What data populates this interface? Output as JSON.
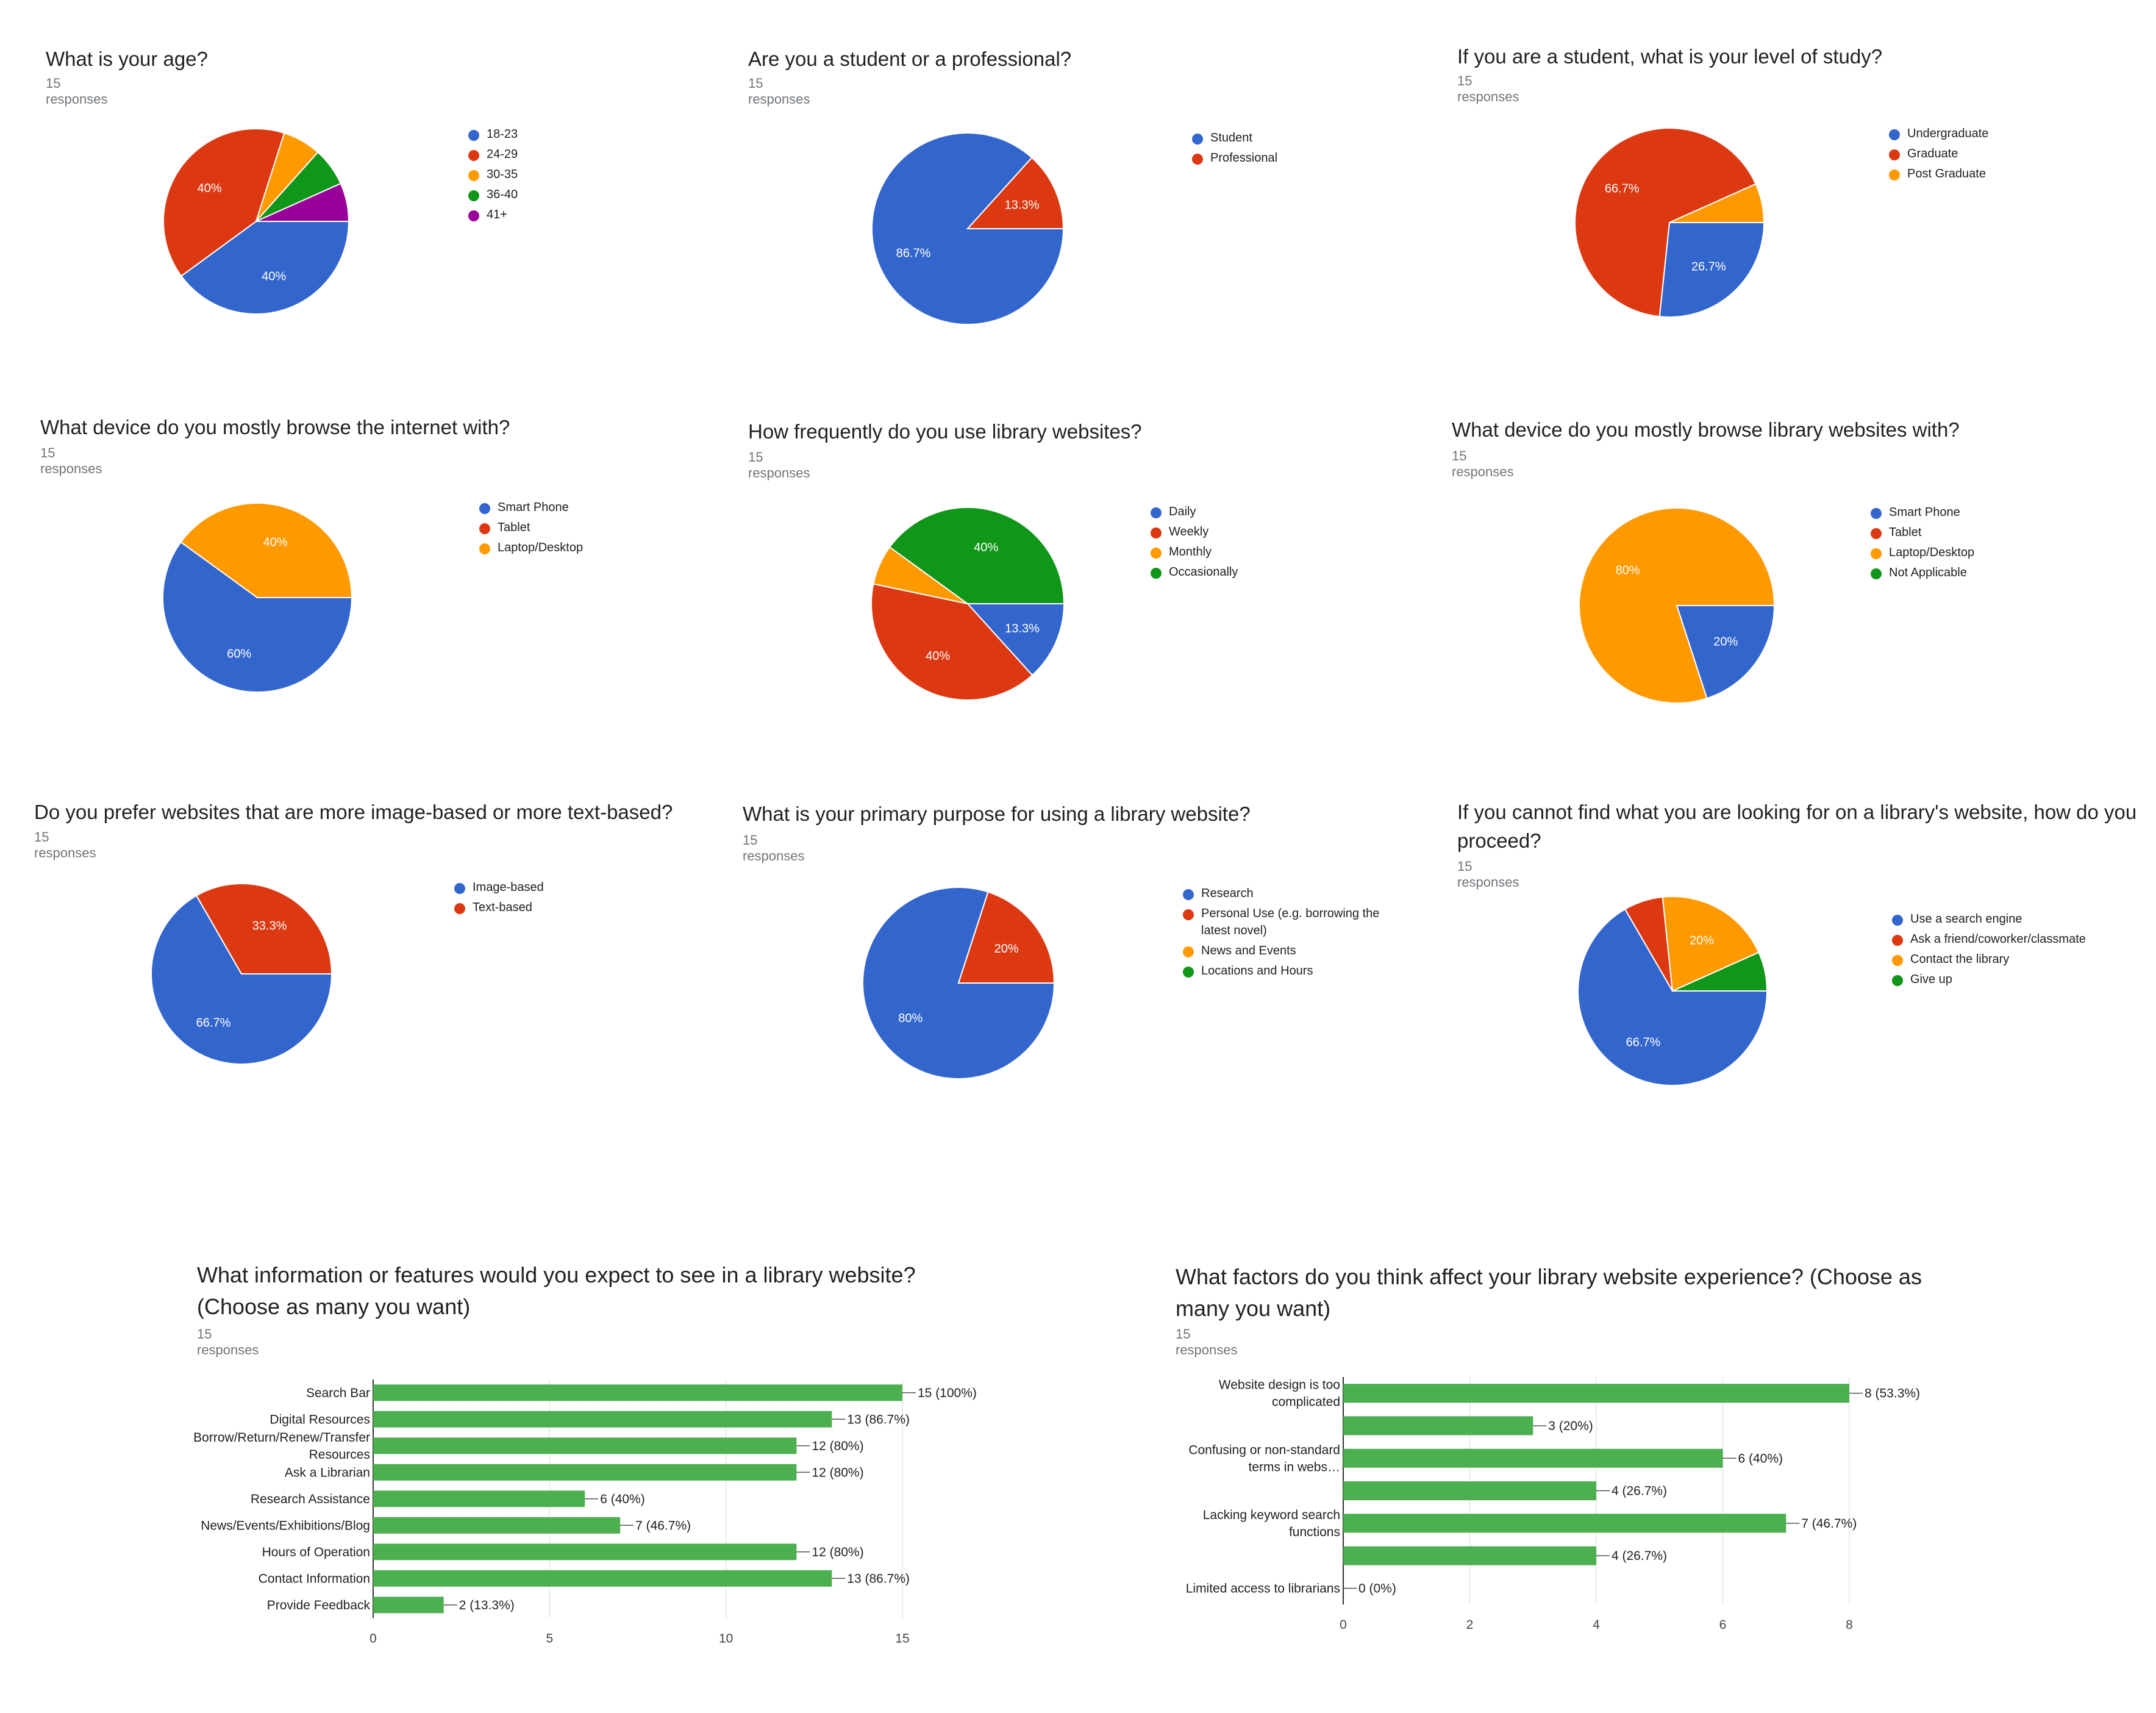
{
  "chart_data": [
    {
      "type": "pie",
      "title": "What is your age?",
      "subtitle": "15 responses",
      "categories": [
        "18-23",
        "24-29",
        "30-35",
        "36-40",
        "41+"
      ],
      "values": [
        40,
        40,
        6.7,
        6.7,
        6.7
      ],
      "labels": [
        "40%",
        "40%",
        "",
        "",
        ""
      ],
      "colors": [
        "#3366cc",
        "#dc3912",
        "#ff9900",
        "#109618",
        "#990099"
      ]
    },
    {
      "type": "pie",
      "title": "Are you a student or a professional?",
      "subtitle": "15 responses",
      "categories": [
        "Student",
        "Professional"
      ],
      "values": [
        86.7,
        13.3
      ],
      "labels": [
        "86.7%",
        "13.3%"
      ],
      "colors": [
        "#3366cc",
        "#dc3912"
      ]
    },
    {
      "type": "pie",
      "title": "If you are a student, what is your level of study?",
      "subtitle": "15 responses",
      "categories": [
        "Undergraduate",
        "Graduate",
        "Post Graduate"
      ],
      "values": [
        26.7,
        66.7,
        6.7
      ],
      "labels": [
        "26.7%",
        "66.7%",
        ""
      ],
      "colors": [
        "#3366cc",
        "#dc3912",
        "#ff9900"
      ]
    },
    {
      "type": "pie",
      "title": "What device do you mostly browse the internet with?",
      "subtitle": "15 responses",
      "categories": [
        "Smart Phone",
        "Tablet",
        "Laptop/Desktop"
      ],
      "values": [
        60,
        0,
        40
      ],
      "labels": [
        "60%",
        "",
        "40%"
      ],
      "colors": [
        "#3366cc",
        "#dc3912",
        "#ff9900"
      ]
    },
    {
      "type": "pie",
      "title": "How frequently do you use library websites?",
      "subtitle": "15 responses",
      "categories": [
        "Daily",
        "Weekly",
        "Monthly",
        "Occasionally"
      ],
      "values": [
        13.3,
        40,
        6.7,
        40
      ],
      "labels": [
        "13.3%",
        "40%",
        "",
        "40%"
      ],
      "colors": [
        "#3366cc",
        "#dc3912",
        "#ff9900",
        "#109618"
      ]
    },
    {
      "type": "pie",
      "title": "What device do you mostly browse library websites with?",
      "subtitle": "15 responses",
      "categories": [
        "Smart Phone",
        "Tablet",
        "Laptop/Desktop",
        "Not Applicable"
      ],
      "values": [
        20,
        0,
        80,
        0
      ],
      "labels": [
        "20%",
        "",
        "80%",
        ""
      ],
      "colors": [
        "#3366cc",
        "#dc3912",
        "#ff9900",
        "#109618"
      ]
    },
    {
      "type": "pie",
      "title": "Do you prefer websites that are more image-based or more text-based?",
      "subtitle": "15 responses",
      "categories": [
        "Image-based",
        "Text-based"
      ],
      "values": [
        66.7,
        33.3
      ],
      "labels": [
        "66.7%",
        "33.3%"
      ],
      "colors": [
        "#3366cc",
        "#dc3912"
      ]
    },
    {
      "type": "pie",
      "title": "What is your primary purpose for using a library website?",
      "subtitle": "15 responses",
      "categories": [
        "Research",
        "Personal Use (e.g. borrowing the latest novel)",
        "News and Events",
        "Locations and Hours"
      ],
      "values": [
        80,
        20,
        0,
        0
      ],
      "labels": [
        "80%",
        "20%",
        "",
        ""
      ],
      "colors": [
        "#3366cc",
        "#dc3912",
        "#ff9900",
        "#109618"
      ]
    },
    {
      "type": "pie",
      "title": "If you cannot find what you are looking for on a library's website, how do you proceed?",
      "subtitle": "15 responses",
      "categories": [
        "Use a search engine",
        "Ask a friend/coworker/classmate",
        "Contact the library",
        "Give up"
      ],
      "values": [
        66.7,
        6.7,
        20,
        6.7
      ],
      "labels": [
        "66.7%",
        "",
        "20%",
        ""
      ],
      "colors": [
        "#3366cc",
        "#dc3912",
        "#ff9900",
        "#109618"
      ]
    },
    {
      "type": "bar",
      "orientation": "horizontal",
      "title": "What information or features would you expect to see in a library website? (Choose as many you want)",
      "subtitle": "15 responses",
      "categories": [
        [
          "Search Bar"
        ],
        [
          "Digital Resources"
        ],
        [
          "Borrow/Return/Renew/Transfer",
          "Resources"
        ],
        [
          "Ask a Librarian"
        ],
        [
          "Research Assistance"
        ],
        [
          "News/Events/Exhibitions/Blog"
        ],
        [
          "Hours of Operation"
        ],
        [
          "Contact Information"
        ],
        [
          "Provide Feedback"
        ]
      ],
      "values": [
        15,
        13,
        12,
        12,
        6,
        7,
        12,
        13,
        2
      ],
      "value_labels": [
        "15 (100%)",
        "13 (86.7%)",
        "12 (80%)",
        "12 (80%)",
        "6 (40%)",
        "7 (46.7%)",
        "12 (80%)",
        "13 (86.7%)",
        "2 (13.3%)"
      ],
      "xlim": [
        0,
        15
      ],
      "xticks": [
        "0",
        "5",
        "10",
        "15"
      ],
      "color": "#4caf50"
    },
    {
      "type": "bar",
      "orientation": "horizontal",
      "title": "What factors do you think affect your library website experience? (Choose as many you want)",
      "subtitle": "15 responses",
      "categories": [
        [
          "Website design is too",
          "complicated"
        ],
        [],
        [
          "Confusing or non-standard",
          "terms in webs…"
        ],
        [],
        [
          "Lacking keyword search",
          "functions"
        ],
        [],
        [
          "Limited access to librarians"
        ]
      ],
      "values": [
        8,
        3,
        6,
        4,
        7,
        4,
        0
      ],
      "value_labels": [
        "8 (53.3%)",
        "3 (20%)",
        "6 (40%)",
        "4 (26.7%)",
        "7 (46.7%)",
        "4 (26.7%)",
        "0 (0%)"
      ],
      "xlim": [
        0,
        8
      ],
      "xticks": [
        "0",
        "2",
        "4",
        "6",
        "8"
      ],
      "color": "#4caf50"
    }
  ]
}
